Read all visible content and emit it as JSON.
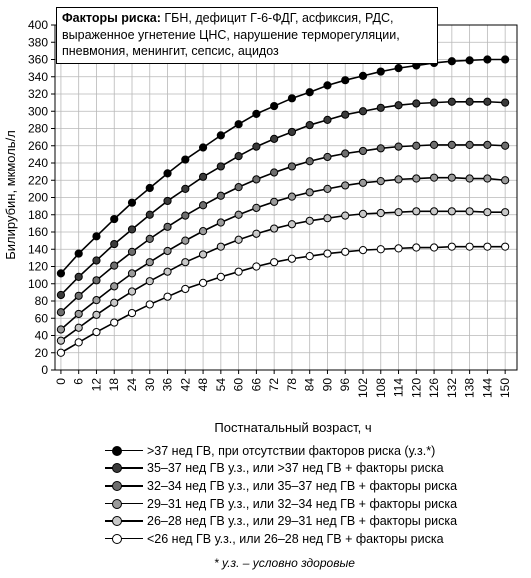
{
  "chart_data": {
    "type": "line",
    "risk_label": "Факторы риска:",
    "risk_text": " ГБН, дефицит Г-6-ФДГ, асфиксия, РДС, выраженное угнетение ЦНС, нарушение терморегуляции, пневмония, менингит, сепсис, ацидоз",
    "xlabel": "Постнатальный возраст, ч",
    "ylabel": "Билирубин, мкмоль/л",
    "ylim": [
      0,
      400
    ],
    "yticks": [
      0,
      20,
      40,
      60,
      80,
      100,
      120,
      140,
      160,
      180,
      200,
      220,
      240,
      260,
      280,
      300,
      320,
      340,
      360,
      380,
      400
    ],
    "x": [
      0,
      6,
      12,
      18,
      24,
      30,
      36,
      42,
      48,
      54,
      60,
      66,
      72,
      78,
      84,
      90,
      96,
      102,
      108,
      114,
      120,
      126,
      132,
      138,
      144,
      150
    ],
    "grid": true,
    "legend_position": "bottom",
    "series": [
      {
        "name": ">37 нед ГВ, при отсутствии факторов риска (у.з.*)",
        "color": "#000000",
        "values": [
          112,
          135,
          155,
          175,
          194,
          211,
          228,
          244,
          258,
          272,
          285,
          297,
          306,
          315,
          322,
          330,
          336,
          341,
          346,
          350,
          353,
          356,
          358,
          359,
          360,
          360
        ]
      },
      {
        "name": "35–37 нед ГВ у.з., или >37 нед ГВ + факторы риска",
        "color": "#3a3a3a",
        "values": [
          87,
          108,
          127,
          146,
          163,
          180,
          196,
          210,
          224,
          236,
          248,
          259,
          268,
          276,
          284,
          290,
          296,
          300,
          304,
          307,
          309,
          310,
          311,
          311,
          311,
          310
        ]
      },
      {
        "name": "32–34 нед ГВ у.з., или 35–37 нед ГВ + факторы риска",
        "color": "#6e6e6e",
        "values": [
          67,
          86,
          104,
          121,
          137,
          152,
          166,
          179,
          191,
          202,
          212,
          221,
          229,
          236,
          242,
          247,
          251,
          254,
          257,
          259,
          260,
          261,
          261,
          261,
          261,
          260
        ]
      },
      {
        "name": "29–31 нед ГВ у.з., или 32–34 нед ГВ + факторы риска",
        "color": "#9a9a9a",
        "values": [
          47,
          65,
          81,
          97,
          112,
          125,
          138,
          150,
          161,
          171,
          180,
          188,
          195,
          201,
          206,
          210,
          214,
          217,
          219,
          221,
          222,
          223,
          223,
          222,
          222,
          220
        ]
      },
      {
        "name": "26–28 нед ГВ у.з., или 29–31 нед ГВ + факторы риска",
        "color": "#c8c8c8",
        "values": [
          34,
          49,
          64,
          78,
          91,
          103,
          114,
          125,
          134,
          143,
          151,
          158,
          164,
          169,
          173,
          176,
          179,
          181,
          182,
          183,
          184,
          184,
          184,
          184,
          183,
          183
        ]
      },
      {
        "name": "<26 нед ГВ у.з., или 26–28 нед ГВ + факторы риска",
        "color": "#ffffff",
        "values": [
          20,
          32,
          44,
          55,
          66,
          76,
          85,
          94,
          101,
          108,
          114,
          120,
          125,
          129,
          132,
          135,
          137,
          139,
          140,
          141,
          142,
          142,
          143,
          143,
          143,
          143
        ]
      }
    ],
    "footnote": "* у.з. – условно здоровые"
  }
}
